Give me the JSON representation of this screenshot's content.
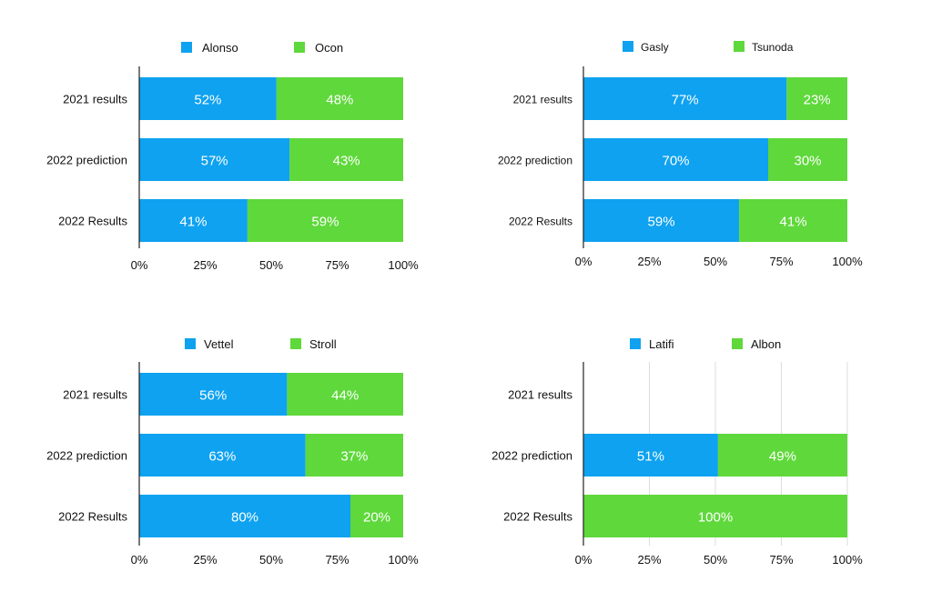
{
  "chart_data": [
    {
      "type": "bar",
      "orientation": "horizontal",
      "stacked": true,
      "categories": [
        "2021 results",
        "2022 prediction",
        "2022 Results"
      ],
      "series": [
        {
          "name": "Alonso",
          "values": [
            52,
            57,
            41
          ],
          "labels": [
            "52%",
            "57%",
            "41%"
          ]
        },
        {
          "name": "Ocon",
          "values": [
            48,
            43,
            59
          ],
          "labels": [
            "48%",
            "43%",
            "59%"
          ]
        }
      ],
      "xlim": [
        0,
        100
      ],
      "xticks": [
        "0%",
        "25%",
        "50%",
        "75%",
        "100%"
      ],
      "grid": false,
      "legend": "top"
    },
    {
      "type": "bar",
      "orientation": "horizontal",
      "stacked": true,
      "categories": [
        "2021 results",
        "2022 prediction",
        "2022 Results"
      ],
      "series": [
        {
          "name": "Gasly",
          "values": [
            77,
            70,
            59
          ],
          "labels": [
            "77%",
            "70%",
            "59%"
          ]
        },
        {
          "name": "Tsunoda",
          "values": [
            23,
            30,
            41
          ],
          "labels": [
            "23%",
            "30%",
            "41%"
          ]
        }
      ],
      "xlim": [
        0,
        100
      ],
      "xticks": [
        "0%",
        "25%",
        "50%",
        "75%",
        "100%"
      ],
      "grid": false,
      "legend": "top"
    },
    {
      "type": "bar",
      "orientation": "horizontal",
      "stacked": true,
      "categories": [
        "2021 results",
        "2022 prediction",
        "2022 Results"
      ],
      "series": [
        {
          "name": "Vettel",
          "values": [
            56,
            63,
            80
          ],
          "labels": [
            "56%",
            "63%",
            "80%"
          ]
        },
        {
          "name": "Stroll",
          "values": [
            44,
            37,
            20
          ],
          "labels": [
            "44%",
            "37%",
            "20%"
          ]
        }
      ],
      "xlim": [
        0,
        100
      ],
      "xticks": [
        "0%",
        "25%",
        "50%",
        "75%",
        "100%"
      ],
      "grid": false,
      "legend": "top"
    },
    {
      "type": "bar",
      "orientation": "horizontal",
      "stacked": true,
      "categories": [
        "2021 results",
        "2022 prediction",
        "2022 Results"
      ],
      "series": [
        {
          "name": "Latifi",
          "values": [
            0,
            51,
            0
          ],
          "labels": [
            "",
            "51%",
            ""
          ]
        },
        {
          "name": "Albon",
          "values": [
            0,
            49,
            100
          ],
          "labels": [
            "",
            "49%",
            "100%"
          ]
        }
      ],
      "xlim": [
        0,
        100
      ],
      "xticks": [
        "0%",
        "25%",
        "50%",
        "75%",
        "100%"
      ],
      "grid": true,
      "legend": "top"
    }
  ],
  "colors": {
    "series_a": "#0ea2f0",
    "series_b": "#5fd83b",
    "axis": "#222222",
    "grid": "#dddddd",
    "text": "#111111",
    "bar_label": "#ffffff"
  }
}
